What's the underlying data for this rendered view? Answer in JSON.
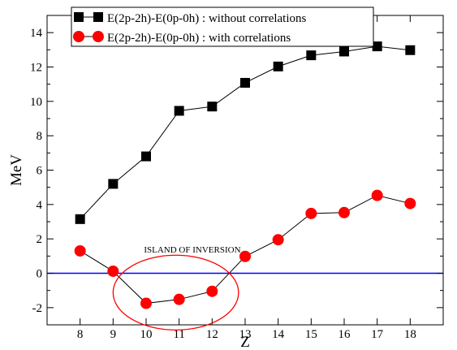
{
  "chart_data": {
    "type": "line",
    "xlabel": "Z",
    "ylabel": "MeV",
    "xlim": [
      7,
      19
    ],
    "ylim": [
      -3,
      15
    ],
    "x_ticks": [
      8,
      9,
      10,
      11,
      12,
      13,
      14,
      15,
      16,
      17,
      18
    ],
    "y_ticks": [
      -2,
      0,
      2,
      4,
      6,
      8,
      10,
      12,
      14
    ],
    "legend_position": "top",
    "series": [
      {
        "name": "E(2p-2h)-E(0p-0h) : without correlations",
        "marker": "square",
        "color": "#000000",
        "x": [
          8,
          9,
          10,
          11,
          12,
          13,
          14,
          15,
          16,
          17,
          18
        ],
        "y": [
          3.15,
          5.2,
          6.8,
          9.45,
          9.7,
          11.08,
          12.03,
          12.68,
          12.9,
          13.2,
          12.98
        ]
      },
      {
        "name": "E(2p-2h)-E(0p-0h) : with correlations",
        "marker": "circle",
        "color": "#ff0000",
        "x": [
          8,
          9,
          10,
          11,
          12,
          13,
          14,
          15,
          16,
          17,
          18
        ],
        "y": [
          1.3,
          0.12,
          -1.75,
          -1.52,
          -1.05,
          0.98,
          1.95,
          3.48,
          3.53,
          4.53,
          4.06
        ]
      }
    ],
    "reference_line": {
      "y": 0,
      "color": "#0000ff"
    },
    "annotations": [
      {
        "text": "ISLAND OF INVERSION"
      }
    ],
    "highlight_region": {
      "shape": "ellipse",
      "color": "#ff0000",
      "x_range": [
        9,
        12.8
      ],
      "y_range": [
        -3.3,
        1.05
      ]
    }
  }
}
